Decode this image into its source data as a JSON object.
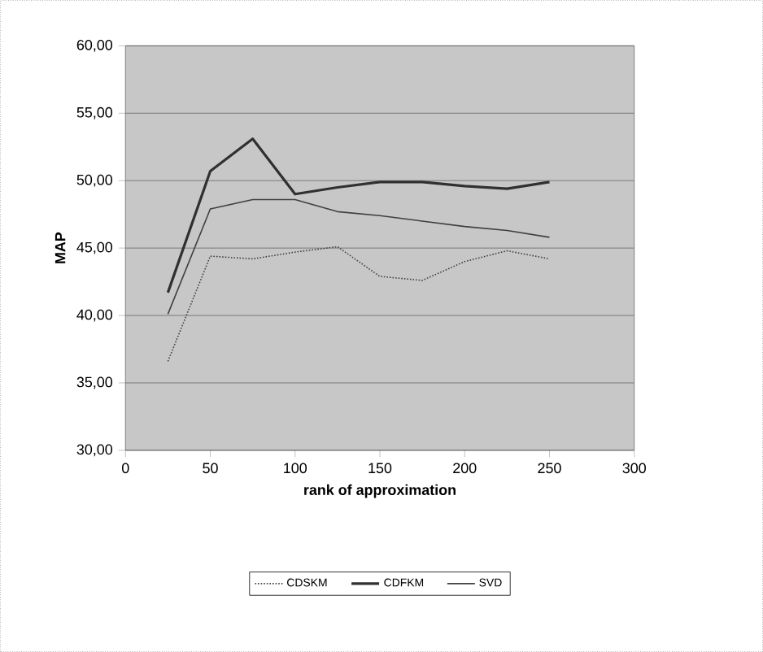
{
  "chart_data": {
    "type": "line",
    "xlabel": "rank of approximation",
    "ylabel": "MAP",
    "x": [
      25,
      50,
      75,
      100,
      125,
      150,
      175,
      200,
      225,
      250
    ],
    "series": [
      {
        "name": "CDSKM",
        "color": "#404040",
        "line_style": "dotted",
        "values": [
          36.6,
          44.4,
          44.2,
          44.7,
          45.1,
          42.9,
          42.6,
          44.0,
          44.8,
          44.2
        ]
      },
      {
        "name": "CDFKM",
        "color": "#303030",
        "values": [
          41.7,
          50.7,
          53.1,
          49.0,
          49.5,
          49.9,
          49.9,
          49.6,
          49.4,
          49.9
        ]
      },
      {
        "name": "SVD",
        "color": "#404040",
        "values": [
          40.1,
          47.9,
          48.6,
          48.6,
          47.7,
          47.4,
          47.0,
          46.6,
          46.3,
          45.8
        ]
      }
    ],
    "xlim": [
      0,
      300
    ],
    "xticks": [
      0,
      50,
      100,
      150,
      200,
      250,
      300
    ],
    "ylim": [
      30,
      60
    ],
    "yticks": [
      {
        "value": 30,
        "label": "30,00"
      },
      {
        "value": 35,
        "label": "35,00"
      },
      {
        "value": 40,
        "label": "40,00"
      },
      {
        "value": 45,
        "label": "45,00"
      },
      {
        "value": 50,
        "label": "50,00"
      },
      {
        "value": 55,
        "label": "55,00"
      },
      {
        "value": 60,
        "label": "60,00"
      }
    ],
    "grid": "y",
    "legend": "bottom",
    "line_style": "solid",
    "marker": "none"
  }
}
